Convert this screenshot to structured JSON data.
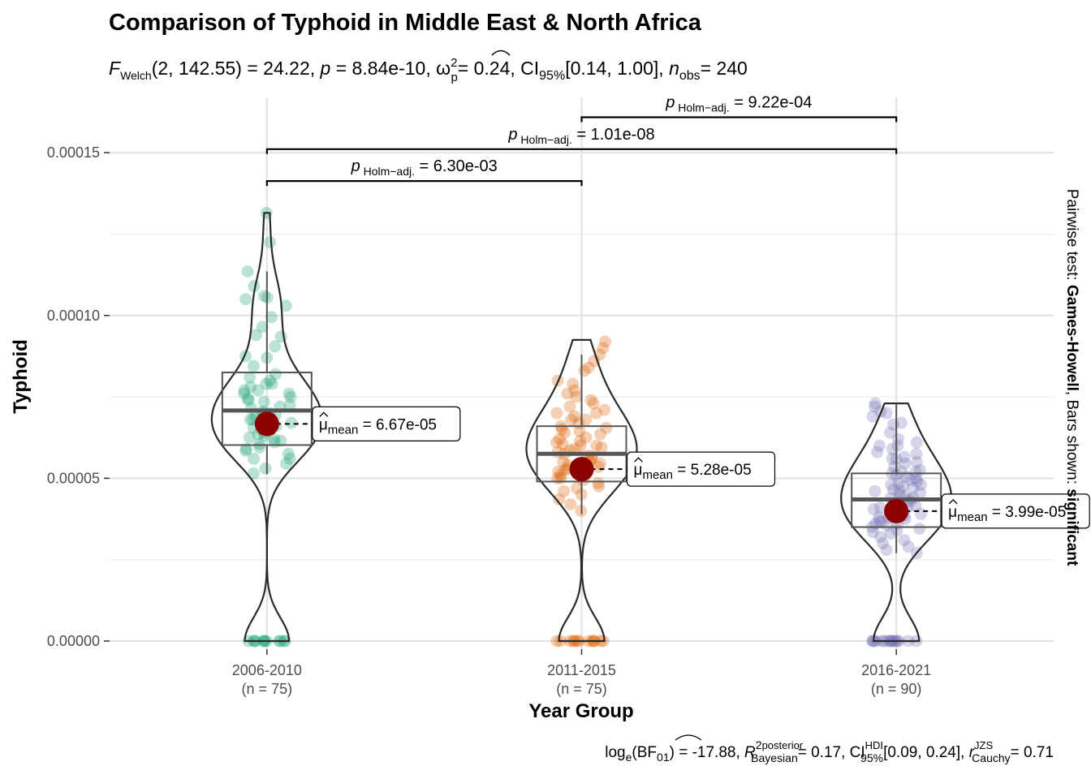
{
  "chart_data": {
    "type": "violin",
    "title": "Comparison of Typhoid in Middle East & North Africa",
    "subtitle": {
      "prefix": "F",
      "prefix_sub": "Welch",
      "df": "(2, 142.55)",
      "stat": "= 24.22,",
      "p_label": "p",
      "p_value": "= 8.84e-10,",
      "effect_label": "ω",
      "effect_sup": "2",
      "effect_sub": "p",
      "effect_value": "= 0.24, CI",
      "ci_sub": "95%",
      "ci_value": "[0.14, 1.00],",
      "n_label": "n",
      "n_sub": "obs",
      "n_value": "= 240"
    },
    "xlabel": "Year Group",
    "ylabel": "Typhoid",
    "ylim": [
      -2.5e-06,
      0.000167
    ],
    "yticks": [
      {
        "value": 0.0,
        "label": "0.00000"
      },
      {
        "value": 5e-05,
        "label": "0.00005"
      },
      {
        "value": 0.0001,
        "label": "0.00010"
      },
      {
        "value": 0.00015,
        "label": "0.00015"
      }
    ],
    "groups": [
      {
        "name": "2006-2010",
        "n_label": "(n = 75)",
        "color": "#1b9e77",
        "q1": 6.02e-05,
        "median": 7.08e-05,
        "q3": 8.25e-05,
        "whisker_low": 5.13e-05,
        "whisker_high": 0.0001135,
        "max": 0.0001315,
        "mean": 6.67e-05,
        "mean_label": "= 6.67e-05",
        "points": [
          0.0001315,
          0.0001225,
          0.0001135,
          0.000109,
          0.000106,
          0.0001055,
          0.000105,
          0.000103,
          9.95e-05,
          9.65e-05,
          9.4e-05,
          9.35e-05,
          9.05e-05,
          8.75e-05,
          8.7e-05,
          8.45e-05,
          8.2e-05,
          8.1e-05,
          8e-05,
          7.9e-05,
          7.8e-05,
          7.7e-05,
          7.6e-05,
          7.5e-05,
          7.45e-05,
          7.35e-05,
          7.25e-05,
          7.15e-05,
          7.05e-05,
          7e-05,
          6.95e-05,
          6.9e-05,
          6.8e-05,
          6.7e-05,
          6.65e-05,
          6.55e-05,
          6.45e-05,
          6.35e-05,
          6.25e-05,
          6.15e-05,
          6.05e-05,
          5.95e-05,
          5.85e-05,
          5.75e-05,
          5.6e-05,
          5.45e-05,
          5.3e-05,
          5.15e-05,
          7.9e-05,
          6.5e-05,
          7.2e-05,
          6.1e-05,
          7.4e-05,
          6.8e-05,
          6.3e-05,
          5.9e-05,
          7.6e-05,
          7e-05,
          6.6e-05,
          6.2e-05,
          5.6e-05,
          7.7e-05,
          6.4e-05,
          0.0,
          0.0,
          0.0,
          0.0,
          0.0,
          0.0,
          0.0,
          0.0,
          0.0,
          0.0,
          0.0,
          0.0
        ]
      },
      {
        "name": "2011-2015",
        "n_label": "(n = 75)",
        "color": "#d95f02",
        "q1": 4.9e-05,
        "median": 5.75e-05,
        "q3": 6.6e-05,
        "whisker_low": 3.9e-05,
        "whisker_high": 8.8e-05,
        "max": 9.25e-05,
        "mean": 5.28e-05,
        "mean_label": "= 5.28e-05",
        "points": [
          9.2e-05,
          9e-05,
          8.8e-05,
          8.6e-05,
          8.4e-05,
          8.3e-05,
          8e-05,
          7.9e-05,
          7.7e-05,
          7.6e-05,
          7.5e-05,
          7.4e-05,
          7.3e-05,
          7.2e-05,
          7.1e-05,
          7e-05,
          6.9e-05,
          6.8e-05,
          6.7e-05,
          6.6e-05,
          6.55e-05,
          6.45e-05,
          6.35e-05,
          6.25e-05,
          6.15e-05,
          6.05e-05,
          6e-05,
          5.95e-05,
          5.85e-05,
          5.8e-05,
          5.75e-05,
          5.65e-05,
          5.6e-05,
          5.55e-05,
          5.45e-05,
          5.4e-05,
          5.35e-05,
          5.25e-05,
          5.2e-05,
          5.1e-05,
          5e-05,
          4.95e-05,
          4.85e-05,
          4.75e-05,
          4.6e-05,
          4.5e-05,
          4.35e-05,
          4.2e-05,
          4e-05,
          6.2e-05,
          5.9e-05,
          5.3e-05,
          6.8e-05,
          7e-05,
          5.5e-05,
          6.4e-05,
          6.1e-05,
          5.7e-05,
          5e-05,
          4.7e-05,
          6.5e-05,
          6e-05,
          0.0,
          0.0,
          0.0,
          0.0,
          0.0,
          0.0,
          0.0,
          0.0,
          0.0,
          0.0,
          0.0,
          0.0,
          0.0
        ]
      },
      {
        "name": "2016-2021",
        "n_label": "(n = 90)",
        "color": "#7570b3",
        "q1": 3.5e-05,
        "median": 4.35e-05,
        "q3": 5.15e-05,
        "whisker_low": 2.7e-05,
        "whisker_high": 7.3e-05,
        "max": 7.3e-05,
        "mean": 3.99e-05,
        "mean_label": "= 3.99e-05",
        "points": [
          7.3e-05,
          7.2e-05,
          7.05e-05,
          7e-05,
          6.9e-05,
          6.7e-05,
          6.65e-05,
          6.4e-05,
          6.2e-05,
          6.1e-05,
          6e-05,
          5.9e-05,
          5.8e-05,
          5.75e-05,
          5.65e-05,
          5.6e-05,
          5.5e-05,
          5.45e-05,
          5.35e-05,
          5.25e-05,
          5.2e-05,
          5.15e-05,
          5.1e-05,
          5.05e-05,
          4.95e-05,
          4.9e-05,
          4.85e-05,
          4.8e-05,
          4.75e-05,
          4.7e-05,
          4.65e-05,
          4.6e-05,
          4.55e-05,
          4.5e-05,
          4.45e-05,
          4.4e-05,
          4.35e-05,
          4.3e-05,
          4.25e-05,
          4.2e-05,
          4.15e-05,
          4.1e-05,
          4.05e-05,
          4e-05,
          3.95e-05,
          3.9e-05,
          3.85e-05,
          3.8e-05,
          3.75e-05,
          3.7e-05,
          3.65e-05,
          3.6e-05,
          3.55e-05,
          3.5e-05,
          3.45e-05,
          3.4e-05,
          3.35e-05,
          3.3e-05,
          3.2e-05,
          3.1e-05,
          3e-05,
          2.9e-05,
          2.8e-05,
          2.7e-05,
          5.2e-05,
          4.8e-05,
          4.4e-05,
          4.1e-05,
          3.8e-05,
          5.6e-05,
          5e-05,
          4.6e-05,
          3.6e-05,
          6e-05,
          0.0,
          0.0,
          0.0,
          0.0,
          0.0,
          0.0,
          0.0,
          0.0,
          0.0,
          0.0,
          0.0,
          0.0,
          0.0,
          0.0,
          0.0,
          0.0
        ]
      }
    ],
    "mean_label_prefix_sub": "mean",
    "mean_color": "#8b0000",
    "pairwise": [
      {
        "from": 0,
        "to": 1,
        "y": 0.0001413,
        "label_sub": "Holm−adj.",
        "label_value": "= 6.30e-03"
      },
      {
        "from": 0,
        "to": 2,
        "y": 0.0001511,
        "label_sub": "Holm−adj.",
        "label_value": "= 1.01e-08"
      },
      {
        "from": 1,
        "to": 2,
        "y": 0.0001609,
        "label_sub": "Holm−adj.",
        "label_value": "= 9.22e-04"
      }
    ],
    "side_caption": {
      "part1": "Pairwise test: ",
      "part2": "Games-Howell",
      "part3": ", Bars shown: ",
      "part4": "significant"
    },
    "caption": {
      "log_label": "log",
      "log_sub": "e",
      "bf_open": "(BF",
      "bf_sub": "01",
      "bf_value": ") = -17.88,",
      "r2_label": "R",
      "r2_sup": "2",
      "r2_sup2": "posterior",
      "r2_sub": "Bayesian",
      "r2_value": "= 0.17, CI",
      "ci_sup": "HDI",
      "ci_sub": "95%",
      "ci_value": "[0.09, 0.24],",
      "rc_label": "r",
      "rc_sup": "JZS",
      "rc_sub": "Cauchy",
      "rc_value": "= 0.71"
    }
  }
}
